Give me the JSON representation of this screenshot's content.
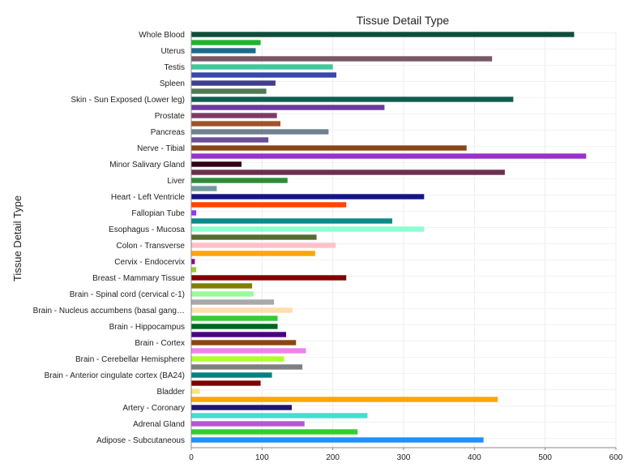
{
  "chart_data": {
    "type": "bar",
    "orientation": "horizontal",
    "title": "Tissue Detail Type",
    "ylabel": "Tissue Detail Type",
    "xlabel": "",
    "xlim": [
      0,
      600
    ],
    "xticks": [
      0,
      100,
      200,
      300,
      400,
      500,
      600
    ],
    "grid": true,
    "legend": "none",
    "labels": [
      "Whole Blood",
      "",
      "Uterus",
      "",
      "Testis",
      "",
      "Spleen",
      "",
      "Skin - Sun Exposed (Lower leg)",
      "",
      "Prostate",
      "",
      "Pancreas",
      "",
      "Nerve - Tibial",
      "",
      "Minor Salivary Gland",
      "",
      "Liver",
      "",
      "Heart - Left Ventricle",
      "",
      "Fallopian Tube",
      "",
      "Esophagus - Mucosa",
      "",
      "Colon - Transverse",
      "",
      "Cervix - Endocervix",
      "",
      "Breast - Mammary Tissue",
      "",
      "Brain - Spinal cord (cervical c-1)",
      "",
      "Brain - Nucleus accumbens (basal gang…",
      "",
      "Brain - Hippocampus",
      "",
      "Brain - Cortex",
      "",
      "Brain - Cerebellar Hemisphere",
      "",
      "Brain - Anterior cingulate cortex (BA24)",
      "",
      "Bladder",
      "",
      "Artery - Coronary",
      "",
      "Adrenal Gland",
      "",
      "Adipose - Subcutaneous"
    ],
    "values": [
      541,
      98,
      91,
      425,
      200,
      205,
      119,
      106,
      455,
      273,
      121,
      126,
      194,
      109,
      389,
      558,
      71,
      443,
      136,
      36,
      329,
      219,
      7,
      284,
      329,
      177,
      204,
      175,
      5,
      7,
      219,
      86,
      88,
      117,
      143,
      122,
      122,
      134,
      148,
      162,
      131,
      157,
      114,
      98,
      12,
      433,
      142,
      249,
      160,
      235,
      413
    ],
    "colors": [
      "#0f4d3a",
      "#22b32e",
      "#1d6a8a",
      "#7a5765",
      "#40c79a",
      "#3a46a8",
      "#3f3f8c",
      "#4f7a52",
      "#0d5e50",
      "#6b3a9b",
      "#803a66",
      "#a0522d",
      "#708090",
      "#6b4f9a",
      "#8b4513",
      "#9932cc",
      "#33001a",
      "#6b2f4f",
      "#2e8b3a",
      "#6f9ba0",
      "#141489",
      "#ff4500",
      "#9b30ff",
      "#0b8a8a",
      "#8affd0",
      "#556b2f",
      "#ffc0cb",
      "#ffa500",
      "#8b008b",
      "#9acd32",
      "#800000",
      "#808000",
      "#98fb98",
      "#a9a9a9",
      "#ffdead",
      "#32cd32",
      "#00641e",
      "#4b0082",
      "#8b4513",
      "#ee82ee",
      "#adff2f",
      "#808080",
      "#008080",
      "#800000",
      "#f0e68c",
      "#ffa500",
      "#191970",
      "#40e0d0",
      "#ba55d3",
      "#32cd32",
      "#1e90ff"
    ]
  }
}
